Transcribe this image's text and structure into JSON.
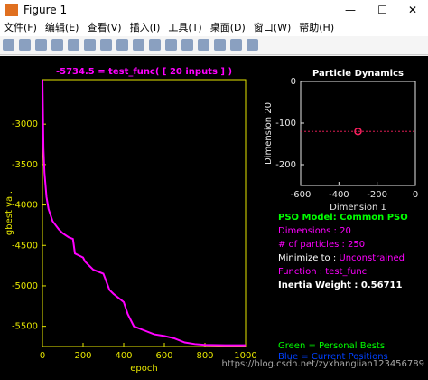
{
  "window": {
    "title": "Figure 1",
    "menu": [
      "文件(F)",
      "编辑(E)",
      "查看(V)",
      "插入(I)",
      "工具(T)",
      "桌面(D)",
      "窗口(W)",
      "帮助(H)"
    ]
  },
  "chart_data": [
    {
      "type": "line",
      "title": "-5734.5 = test_func( [ 20 inputs ] )",
      "title_color": "#ff00ff",
      "axis_color": "#e6e600",
      "x_label": "epoch",
      "y_label": "gbest val.",
      "x": [
        0,
        5,
        10,
        20,
        30,
        50,
        80,
        100,
        130,
        150,
        160,
        200,
        210,
        230,
        250,
        300,
        330,
        350,
        400,
        420,
        450,
        500,
        550,
        600,
        650,
        700,
        750,
        800,
        900,
        1000
      ],
      "y": [
        -2450,
        -3300,
        -3600,
        -3900,
        -4050,
        -4200,
        -4300,
        -4350,
        -4400,
        -4420,
        -4600,
        -4650,
        -4700,
        -4750,
        -4800,
        -4850,
        -5050,
        -5100,
        -5200,
        -5350,
        -5500,
        -5550,
        -5600,
        -5620,
        -5650,
        -5700,
        -5720,
        -5730,
        -5734,
        -5734.5
      ],
      "color": "#ff00ff",
      "xlim": [
        0,
        1000
      ],
      "ylim": [
        -5750,
        -2450
      ],
      "xticks": [
        0,
        200,
        400,
        600,
        800,
        1000
      ],
      "yticks": [
        -3000,
        -3500,
        -4000,
        -4500,
        -5000,
        -5500
      ]
    },
    {
      "type": "scatter",
      "title": "Particle Dynamics",
      "title_color": "#ffffff",
      "axis_color": "#e6e6e6",
      "x_label": "Dimension 1",
      "y_label": "Dimension 20",
      "x": [
        -300
      ],
      "y": [
        -120
      ],
      "color": "#ff2060",
      "xlim": [
        -600,
        0
      ],
      "ylim": [
        -250,
        0
      ],
      "xticks": [
        -600,
        -400,
        -200,
        0
      ],
      "yticks": [
        0,
        -100,
        -200
      ]
    }
  ],
  "info": [
    {
      "text": "PSO Model: Common PSO",
      "color": "#00ff00"
    },
    {
      "text": "Dimensions : 20",
      "color": "#ff00ff"
    },
    {
      "text": "# of particles : 250",
      "color": "#ff00ff"
    },
    {
      "text": "Minimize to : ",
      "value": "Unconstrained",
      "color": "#ffffff",
      "value_color": "#ff00ff"
    },
    {
      "text": "Function : test_func",
      "color": "#ff00ff"
    },
    {
      "text": "Inertia Weight : 0.56711",
      "color": "#ffffff"
    }
  ],
  "legend_notes": [
    {
      "text": "Green = Personal Bests",
      "color": "#00ff00"
    },
    {
      "text": "Blue = Current Positions",
      "color": "#0040ff"
    }
  ],
  "watermark": "https://blog.csdn.net/zyxhangiian123456789"
}
